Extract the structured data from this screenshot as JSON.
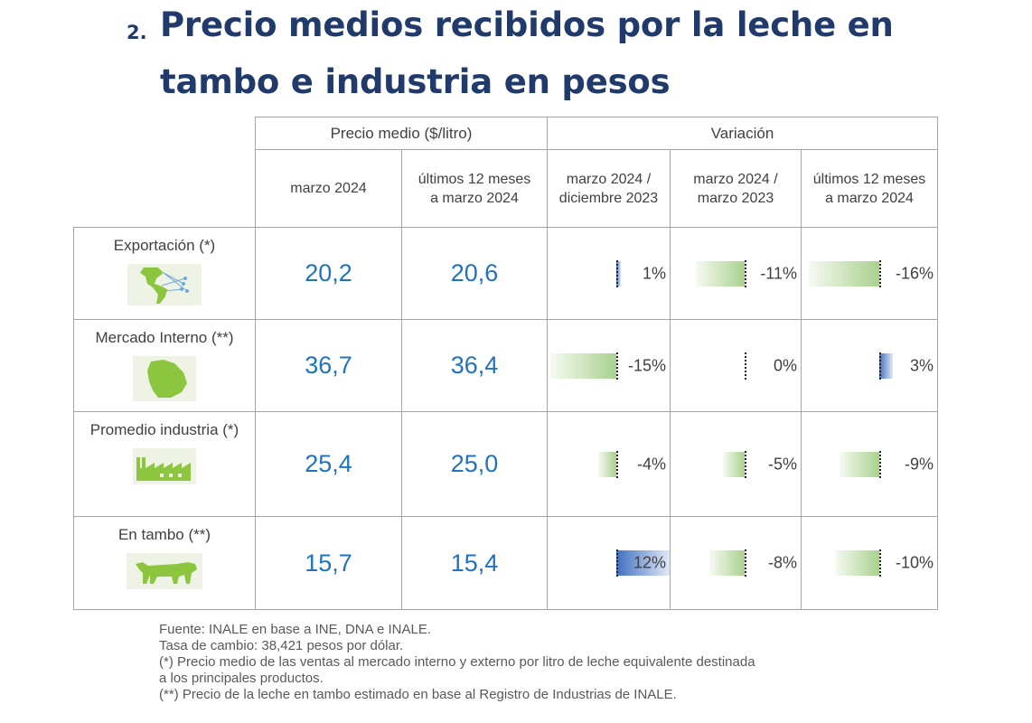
{
  "title": {
    "number": "2.",
    "line1": "Precio medios recibidos por la leche en",
    "line2": "tambo e industria en pesos"
  },
  "table": {
    "group_price": "Precio medio ($/litro)",
    "group_var": "Variación",
    "col1": "marzo 2024",
    "col2_l1": "últimos 12 meses",
    "col2_l2": "a marzo 2024",
    "col3_l1": "marzo 2024 /",
    "col3_l2": "diciembre 2023",
    "col4_l1": "marzo 2024 /",
    "col4_l2": "marzo 2023",
    "col5_l1": "últimos 12 meses",
    "col5_l2": "a marzo 2024",
    "rows": [
      {
        "label": "Exportación (*)",
        "icon": "americas-map-icon",
        "p1": "20,2",
        "p2": "20,6",
        "v1": "1%",
        "v2": "-11%",
        "v3": "-16%",
        "n1": 1,
        "n2": -11,
        "n3": -16
      },
      {
        "label": "Mercado Interno (**)",
        "icon": "uruguay-map-icon",
        "p1": "36,7",
        "p2": "36,4",
        "v1": "-15%",
        "v2": "0%",
        "v3": "3%",
        "n1": -15,
        "n2": 0,
        "n3": 3
      },
      {
        "label": "Promedio industria (*)",
        "icon": "factory-icon",
        "p1": "25,4",
        "p2": "25,0",
        "v1": "-4%",
        "v2": "-5%",
        "v3": "-9%",
        "n1": -4,
        "n2": -5,
        "n3": -9
      },
      {
        "label": "En tambo (**)",
        "icon": "cow-icon",
        "p1": "15,7",
        "p2": "15,4",
        "v1": "12%",
        "v2": "-8%",
        "v3": "-10%",
        "n1": 12,
        "n2": -8,
        "n3": -10
      }
    ]
  },
  "colors": {
    "title": "#1f3a6b",
    "value": "#1f73c0",
    "negative_bar": "#a9d18e",
    "positive_bar": "#3f6fbf"
  },
  "notes": [
    "Fuente: INALE en base a INE, DNA e INALE.",
    "Tasa de cambio: 38,421 pesos por dólar.",
    "(*) Precio medio de las ventas al mercado interno y externo por litro de leche equivalente destinada",
    "a los principales productos.",
    "(**) Precio de la leche en tambo estimado en base al Registro de Industrias de INALE."
  ]
}
